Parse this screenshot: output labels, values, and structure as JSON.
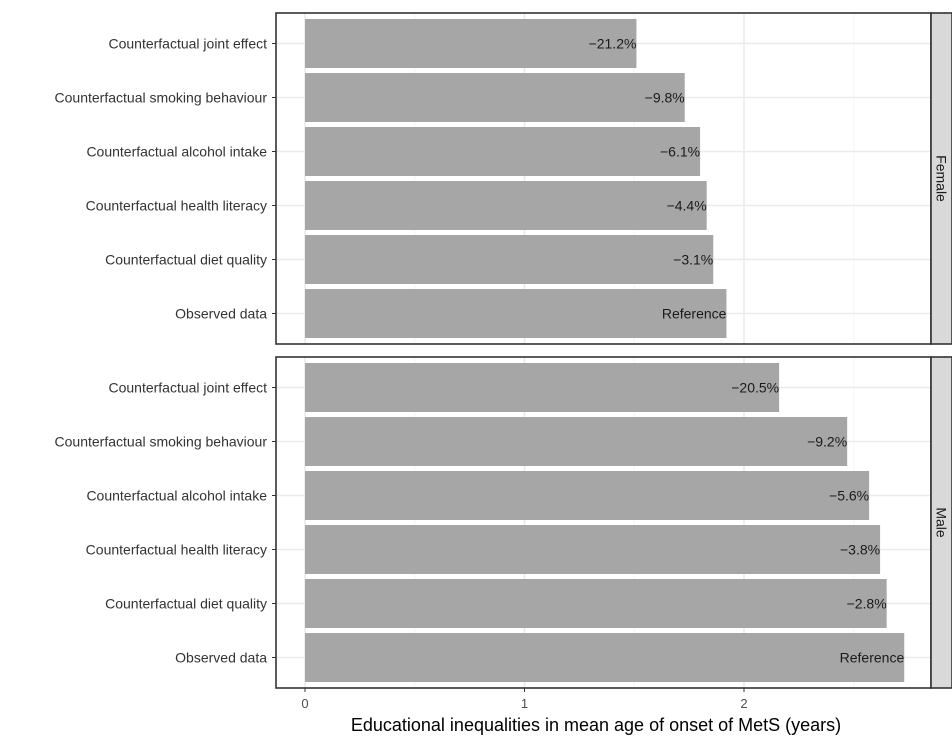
{
  "chart_data": {
    "type": "bar",
    "orientation": "horizontal",
    "xlabel": "Educational inequalities in mean age of onset of MetS (years)",
    "ylabel": "",
    "xlim": [
      0,
      2.82
    ],
    "xticks": [
      0,
      1,
      2
    ],
    "xtick_labels": [
      "0",
      "1",
      "2"
    ],
    "grid": true,
    "categories": [
      "Counterfactual joint effect",
      "Counterfactual smoking behaviour",
      "Counterfactual alcohol intake",
      "Counterfactual health literacy",
      "Counterfactual diet quality",
      "Observed data"
    ],
    "panels": [
      {
        "facet": "Female",
        "values": [
          1.51,
          1.73,
          1.8,
          1.83,
          1.86,
          1.92
        ],
        "labels": [
          "−21.2%",
          "−9.8%",
          "−6.1%",
          "−4.4%",
          "−3.1%",
          "Reference"
        ]
      },
      {
        "facet": "Male",
        "values": [
          2.16,
          2.47,
          2.57,
          2.62,
          2.65,
          2.73
        ],
        "labels": [
          "−20.5%",
          "−9.2%",
          "−5.6%",
          "−3.8%",
          "−2.8%",
          "Reference"
        ]
      }
    ],
    "colors": {
      "bar": "#a6a6a6",
      "panel_border": "#333333",
      "grid_major": "#ebebeb",
      "grid_minor": "#f5f5f5",
      "strip_fill": "#d9d9d9"
    }
  }
}
